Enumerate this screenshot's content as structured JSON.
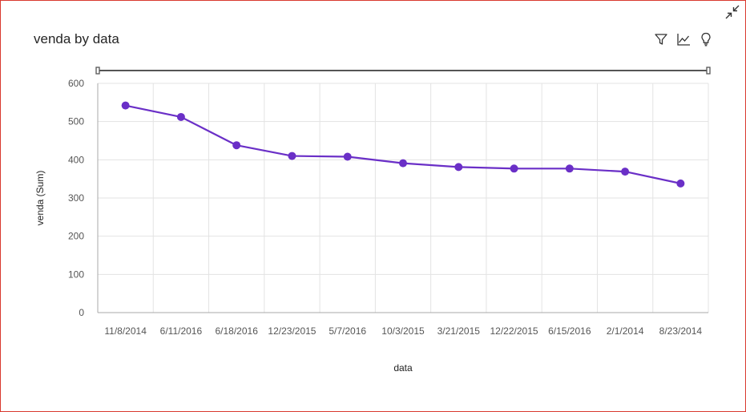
{
  "title": "venda by data",
  "toolbar": {
    "icons": [
      "filter-icon",
      "chart-type-icon",
      "insight-bulb-icon"
    ]
  },
  "colors": {
    "series": "#6a2fc7",
    "grid": "#e3e3e3",
    "axis": "#a8a8a8",
    "slider": "#555555"
  },
  "chart_data": {
    "type": "line",
    "title": "venda by data",
    "xlabel": "data",
    "ylabel": "venda (Sum)",
    "categories": [
      "11/8/2014",
      "6/11/2016",
      "6/18/2016",
      "12/23/2015",
      "5/7/2016",
      "10/3/2015",
      "3/21/2015",
      "12/22/2015",
      "6/15/2016",
      "2/1/2014",
      "8/23/2014"
    ],
    "series": [
      {
        "values": [
          542,
          512,
          438,
          410,
          408,
          391,
          381,
          377,
          377,
          369,
          338
        ]
      }
    ],
    "yticks": [
      0,
      100,
      200,
      300,
      400,
      500,
      600
    ],
    "ylim": [
      0,
      600
    ],
    "grid": true,
    "legend": "none"
  }
}
